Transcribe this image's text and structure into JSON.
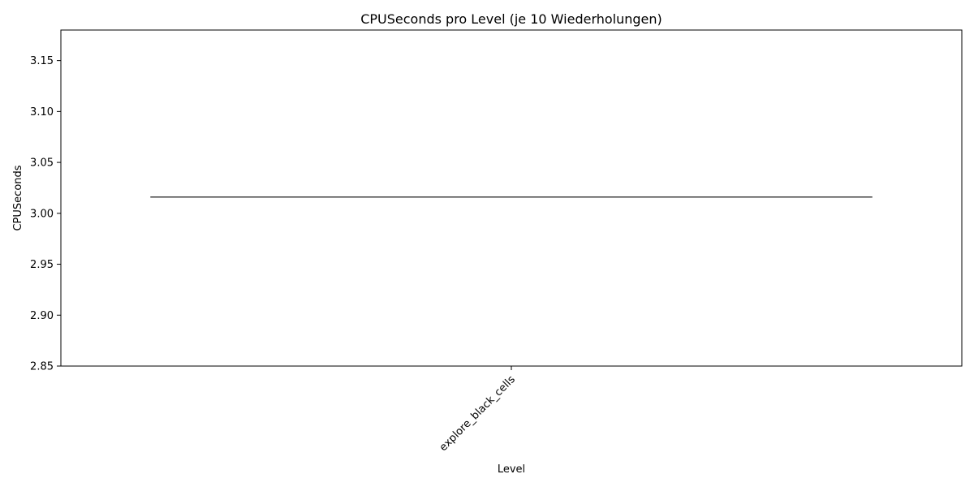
{
  "chart_data": {
    "type": "box",
    "title": "CPUSeconds pro Level (je 10 Wiederholungen)",
    "xlabel": "Level",
    "ylabel": "CPUSeconds",
    "categories": [
      "explore_black_cells"
    ],
    "ylim": [
      2.85,
      3.18
    ],
    "yticks": [
      2.85,
      2.9,
      2.95,
      3.0,
      3.05,
      3.1,
      3.15
    ],
    "ytick_labels": [
      "2.85",
      "2.90",
      "2.95",
      "3.00",
      "3.05",
      "3.10",
      "3.15"
    ],
    "xtick_rotation": 45,
    "grid": false,
    "series": [
      {
        "values": [
          3.016
        ],
        "min": 3.016,
        "q1": 3.016,
        "median": 3.016,
        "q3": 3.016,
        "max": 3.016
      }
    ],
    "colors": {
      "box_line": "#404040",
      "axes": "#000000",
      "background": "#ffffff"
    }
  }
}
